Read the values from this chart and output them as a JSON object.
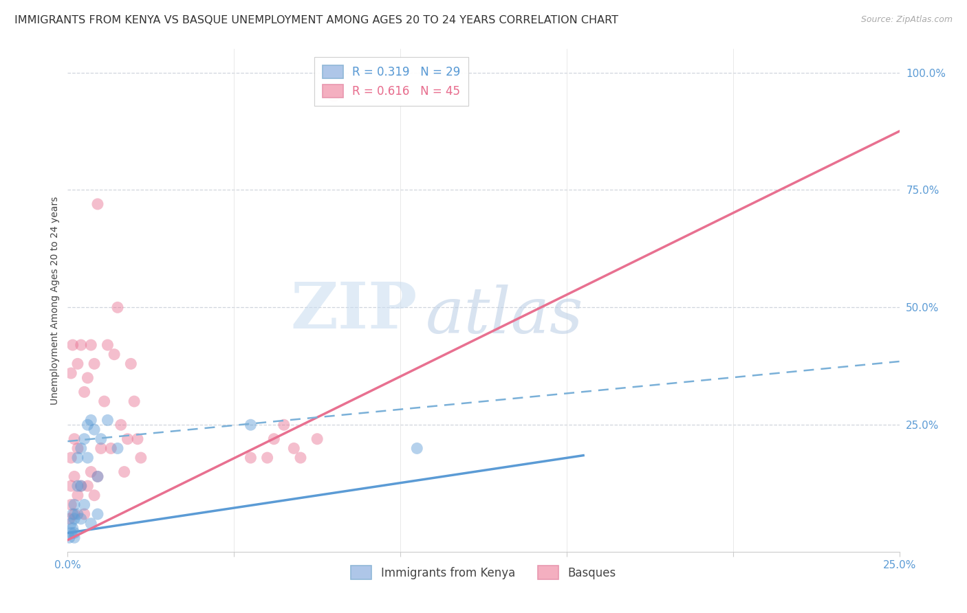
{
  "title": "IMMIGRANTS FROM KENYA VS BASQUE UNEMPLOYMENT AMONG AGES 20 TO 24 YEARS CORRELATION CHART",
  "source": "Source: ZipAtlas.com",
  "ylabel": "Unemployment Among Ages 20 to 24 years",
  "ylabel_right_ticks": [
    "100.0%",
    "75.0%",
    "50.0%",
    "25.0%"
  ],
  "ylabel_right_vals": [
    1.0,
    0.75,
    0.5,
    0.25
  ],
  "legend1_label_r": "R = 0.319",
  "legend1_label_n": "N = 29",
  "legend2_label_r": "R = 0.616",
  "legend2_label_n": "N = 45",
  "legend1_color": "#aec6e8",
  "legend2_color": "#f4afc0",
  "line1_color": "#5b9bd5",
  "line2_color": "#e87090",
  "dashed_line_color": "#7ab0d8",
  "watermark_zip": "ZIP",
  "watermark_atlas": "atlas",
  "background_color": "#ffffff",
  "xlim": [
    0.0,
    0.25
  ],
  "ylim": [
    -0.02,
    1.05
  ],
  "kenya_x": [
    0.0005,
    0.001,
    0.001,
    0.0015,
    0.0015,
    0.002,
    0.002,
    0.002,
    0.002,
    0.003,
    0.003,
    0.003,
    0.004,
    0.004,
    0.004,
    0.005,
    0.005,
    0.006,
    0.006,
    0.007,
    0.007,
    0.008,
    0.009,
    0.009,
    0.01,
    0.012,
    0.015,
    0.055,
    0.105
  ],
  "kenya_y": [
    0.01,
    0.02,
    0.04,
    0.03,
    0.06,
    0.02,
    0.05,
    0.08,
    0.01,
    0.06,
    0.12,
    0.18,
    0.05,
    0.12,
    0.2,
    0.08,
    0.22,
    0.18,
    0.25,
    0.04,
    0.26,
    0.24,
    0.06,
    0.14,
    0.22,
    0.26,
    0.2,
    0.25,
    0.2
  ],
  "basque_x": [
    0.0005,
    0.001,
    0.001,
    0.001,
    0.001,
    0.0015,
    0.002,
    0.002,
    0.002,
    0.003,
    0.003,
    0.003,
    0.004,
    0.004,
    0.005,
    0.005,
    0.006,
    0.006,
    0.007,
    0.007,
    0.008,
    0.008,
    0.009,
    0.009,
    0.01,
    0.011,
    0.012,
    0.013,
    0.014,
    0.015,
    0.016,
    0.017,
    0.018,
    0.019,
    0.02,
    0.021,
    0.022,
    0.055,
    0.06,
    0.062,
    0.065,
    0.068,
    0.07,
    0.075,
    0.08
  ],
  "basque_y": [
    0.05,
    0.08,
    0.12,
    0.18,
    0.36,
    0.42,
    0.06,
    0.14,
    0.22,
    0.1,
    0.2,
    0.38,
    0.12,
    0.42,
    0.06,
    0.32,
    0.12,
    0.35,
    0.15,
    0.42,
    0.1,
    0.38,
    0.14,
    0.72,
    0.2,
    0.3,
    0.42,
    0.2,
    0.4,
    0.5,
    0.25,
    0.15,
    0.22,
    0.38,
    0.3,
    0.22,
    0.18,
    0.18,
    0.18,
    0.22,
    0.25,
    0.2,
    0.18,
    0.22,
    0.95
  ],
  "title_fontsize": 11.5,
  "axis_label_fontsize": 10,
  "tick_fontsize": 11,
  "legend_fontsize": 12,
  "marker_size": 150,
  "marker_alpha": 0.45,
  "kenya_line_x0": 0.0,
  "kenya_line_y0": 0.02,
  "kenya_line_x1": 0.155,
  "kenya_line_y1": 0.185,
  "basque_line_x0": 0.0,
  "basque_line_y0": 0.005,
  "basque_line_x1": 0.25,
  "basque_line_y1": 0.875,
  "dashed_line_x0": 0.0,
  "dashed_line_y0": 0.215,
  "dashed_line_x1": 0.25,
  "dashed_line_y1": 0.385
}
